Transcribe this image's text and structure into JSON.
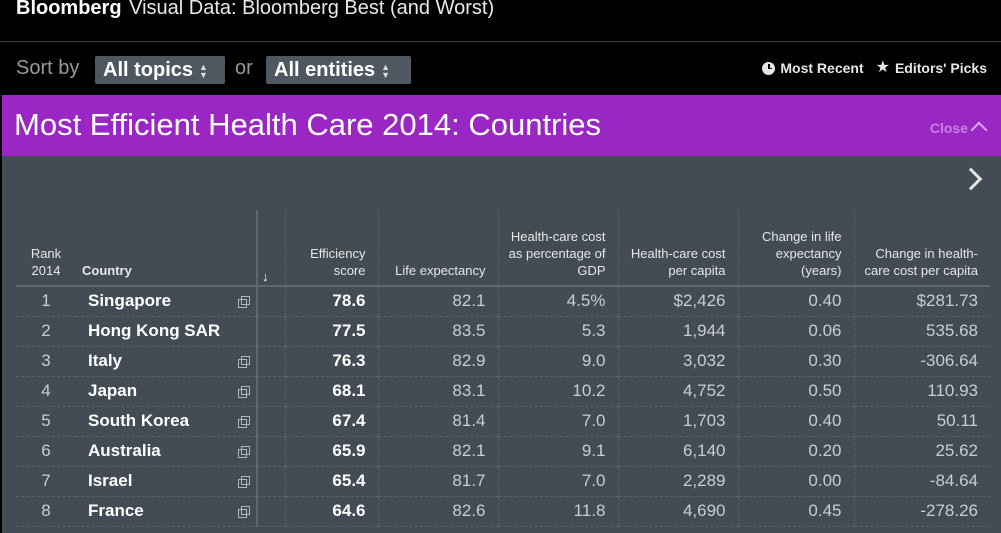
{
  "header": {
    "brand": "Bloomberg",
    "subtitle": "Visual Data: Bloomberg Best (and Worst)"
  },
  "sortbar": {
    "sort_label": "Sort by",
    "topics_value": "All topics",
    "or_label": "or",
    "entities_value": "All entities",
    "most_recent": "Most Recent",
    "editors_picks": "Editors' Picks"
  },
  "panel": {
    "title": "Most Efficient Health Care 2014: Countries",
    "close_label": "Close"
  },
  "table": {
    "headers": {
      "rank": "Rank 2014",
      "country": "Country",
      "efficiency": "Efficiency score",
      "life": "Life expectancy",
      "pct_gdp": "Health-care cost as percentage of GDP",
      "per_capita": "Health-care cost per capita",
      "change_life": "Change in life expectancy (years)",
      "change_cost": "Change in health-care cost per capita"
    },
    "rows": [
      {
        "rank": "1",
        "country": "Singapore",
        "efficiency": "78.6",
        "life": "82.1",
        "pct_gdp": "4.5%",
        "per_capita": "$2,426",
        "change_life": "0.40",
        "change_cost": "$281.73"
      },
      {
        "rank": "2",
        "country": "Hong Kong SAR",
        "efficiency": "77.5",
        "life": "83.5",
        "pct_gdp": "5.3",
        "per_capita": "1,944",
        "change_life": "0.06",
        "change_cost": "535.68"
      },
      {
        "rank": "3",
        "country": "Italy",
        "efficiency": "76.3",
        "life": "82.9",
        "pct_gdp": "9.0",
        "per_capita": "3,032",
        "change_life": "0.30",
        "change_cost": "-306.64"
      },
      {
        "rank": "4",
        "country": "Japan",
        "efficiency": "68.1",
        "life": "83.1",
        "pct_gdp": "10.2",
        "per_capita": "4,752",
        "change_life": "0.50",
        "change_cost": "110.93"
      },
      {
        "rank": "5",
        "country": "South Korea",
        "efficiency": "67.4",
        "life": "81.4",
        "pct_gdp": "7.0",
        "per_capita": "1,703",
        "change_life": "0.40",
        "change_cost": "50.11"
      },
      {
        "rank": "6",
        "country": "Australia",
        "efficiency": "65.9",
        "life": "82.1",
        "pct_gdp": "9.1",
        "per_capita": "6,140",
        "change_life": "0.20",
        "change_cost": "25.62"
      },
      {
        "rank": "7",
        "country": "Israel",
        "efficiency": "65.4",
        "life": "81.7",
        "pct_gdp": "7.0",
        "per_capita": "2,289",
        "change_life": "0.00",
        "change_cost": "-84.64"
      },
      {
        "rank": "8",
        "country": "France",
        "efficiency": "64.6",
        "life": "82.6",
        "pct_gdp": "11.8",
        "per_capita": "4,690",
        "change_life": "0.45",
        "change_cost": "-278.26"
      }
    ]
  },
  "icons": {
    "recent": "clock-icon",
    "picks": "star-icon",
    "close": "chevron-up-icon",
    "next": "chevron-right-icon",
    "sort": "sort-down-arrow-icon",
    "link": "external-link-icon"
  },
  "colors": {
    "accent": "#9a27c3",
    "panel": "#434b54",
    "select": "#4f5760"
  }
}
